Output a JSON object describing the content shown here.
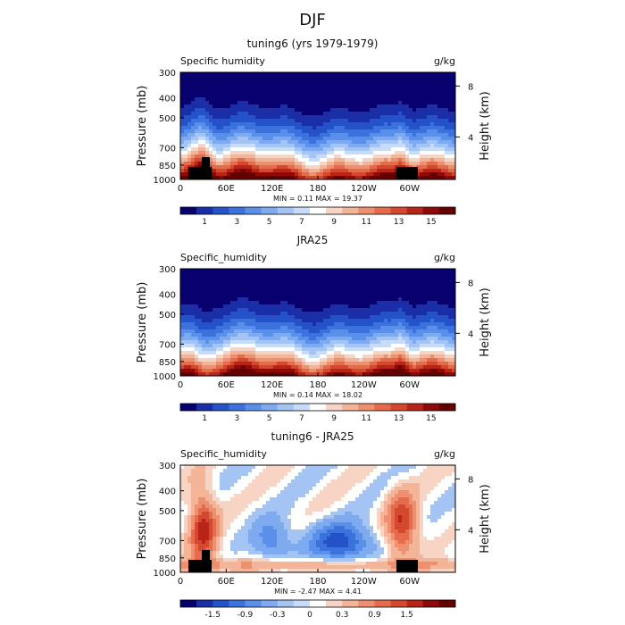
{
  "figure": {
    "title": "DJF"
  },
  "chart_data": [
    {
      "type": "heatmap",
      "title": "tuning6 (yrs 1979-1979)",
      "variable": "Specific humidity",
      "units": "g/kg",
      "ylabel": "Pressure (mb)",
      "ylabel_right": "Height (km)",
      "x_ticks": [
        "0",
        "60E",
        "120E",
        "180",
        "120W",
        "60W"
      ],
      "y_ticks": [
        "300",
        "400",
        "500",
        "700",
        "850",
        "1000"
      ],
      "y_right_ticks": [
        "8",
        "4"
      ],
      "min": 0.11,
      "max": 19.37,
      "minmax_text": "MIN =     0.11   MAX =   19.37",
      "colorbar_ticks": [
        "1",
        "3",
        "5",
        "7",
        "9",
        "11",
        "13",
        "15"
      ],
      "colormap": "blue-white-red",
      "topography_masked": true
    },
    {
      "type": "heatmap",
      "title": "JRA25",
      "variable": "Specific_humidity",
      "units": "g/kg",
      "ylabel": "Pressure (mb)",
      "ylabel_right": "Height (km)",
      "x_ticks": [
        "0",
        "60E",
        "120E",
        "180",
        "120W",
        "60W"
      ],
      "y_ticks": [
        "300",
        "400",
        "500",
        "700",
        "850",
        "1000"
      ],
      "y_right_ticks": [
        "8",
        "4"
      ],
      "min": 0.14,
      "max": 18.02,
      "minmax_text": "MIN =     0.14   MAX =   18.02",
      "colorbar_ticks": [
        "1",
        "3",
        "5",
        "7",
        "9",
        "11",
        "13",
        "15"
      ],
      "colormap": "blue-white-red",
      "topography_masked": false
    },
    {
      "type": "heatmap",
      "title": "tuning6 - JRA25",
      "variable": "Specific_humidity",
      "units": "g/kg",
      "ylabel": "Pressure (mb)",
      "ylabel_right": "Height (km)",
      "x_ticks": [
        "0",
        "60E",
        "120E",
        "180",
        "120W",
        "60W"
      ],
      "y_ticks": [
        "300",
        "400",
        "500",
        "700",
        "850",
        "1000"
      ],
      "y_right_ticks": [
        "8",
        "4"
      ],
      "min": -2.47,
      "max": 4.41,
      "minmax_text": "MIN =    -2.47   MAX =     4.41",
      "colorbar_ticks": [
        "-1.5",
        "-0.9",
        "-0.3",
        "0",
        "0.3",
        "0.9",
        "1.5"
      ],
      "colormap": "blue-white-red-diverging",
      "topography_masked": true
    }
  ],
  "colors": {
    "palette": [
      "#08006e",
      "#1a2ea8",
      "#2452c8",
      "#3c72dc",
      "#5a90ea",
      "#7eaaf0",
      "#a4c4f4",
      "#c8dcf8",
      "#ffffff",
      "#f8d4c4",
      "#f4b498",
      "#ee9070",
      "#e46c4c",
      "#d44830",
      "#b82418",
      "#8c0a0a",
      "#640000"
    ],
    "mask": "#000000"
  }
}
